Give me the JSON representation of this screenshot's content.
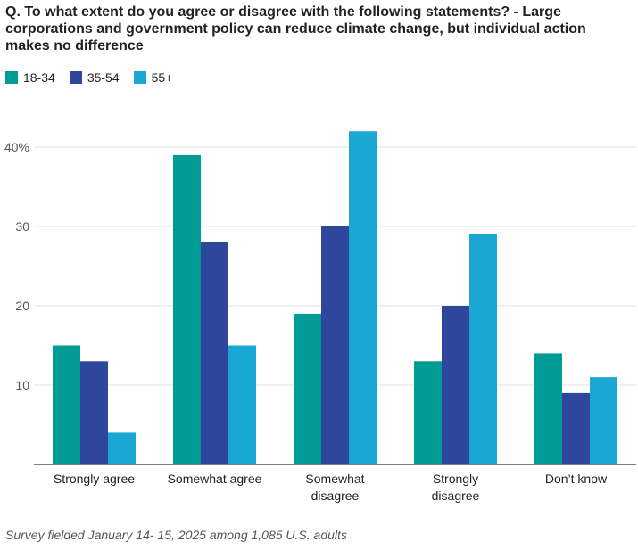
{
  "header": {
    "q_label": "Q.",
    "question": "To what extent do you agree or disagree with the following statements? -",
    "statement": "Large corporations and government policy can reduce climate change, but individual action makes no difference"
  },
  "footer": {
    "note": "Survey fielded January 14- 15, 2025 among 1,085 U.S. adults"
  },
  "chart_data": {
    "type": "bar",
    "categories": [
      "Strongly agree",
      "Somewhat agree",
      "Somewhat disagree",
      "Strongly disagree",
      "Don’t know"
    ],
    "series": [
      {
        "name": "18-34",
        "color": "#009b94",
        "values": [
          15,
          39,
          19,
          13,
          14
        ]
      },
      {
        "name": "35-54",
        "color": "#2e479c",
        "values": [
          13,
          28,
          30,
          20,
          9
        ]
      },
      {
        "name": "55+",
        "color": "#1ba7d4",
        "values": [
          4,
          15,
          42,
          29,
          11
        ]
      }
    ],
    "yticks": [
      "",
      "10",
      "20",
      "30",
      "40%"
    ],
    "ylim": [
      0,
      40
    ],
    "grid": true,
    "legend_position": "top-left"
  }
}
